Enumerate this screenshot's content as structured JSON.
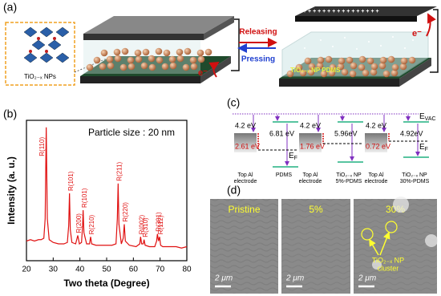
{
  "panel_labels": {
    "a": "(a)",
    "b": "(b)",
    "c": "(c)",
    "d": "(d)"
  },
  "panel_a": {
    "inset_label": "TiO₂₋ₓ NPs",
    "releasing": "Releasing",
    "pressing": "Pressing",
    "layer_label": "TiO₂₋ₓ NP  PDMS",
    "electron_left": "e⁻",
    "electron_right": "e⁻",
    "charges": "+ + + + + + + + + + + + + + + +"
  },
  "chart_data": {
    "type": "line",
    "annotation": "Particle size : 20 nm",
    "x_label": "Two theta (Degree)",
    "y_label": "Intensity (a. u.)",
    "xlim": [
      20,
      80
    ],
    "xticks": [
      20,
      30,
      40,
      50,
      60,
      70,
      80
    ],
    "ylim": [
      0,
      100
    ],
    "color": "#e01010",
    "x": [
      20,
      21.5,
      23,
      24.5,
      25.5,
      26.5,
      27,
      27.4,
      27.8,
      28.5,
      30,
      32,
      34,
      35.3,
      35.8,
      36.1,
      36.4,
      37,
      38.4,
      39.2,
      39.8,
      40.6,
      41,
      41.2,
      41.5,
      42.5,
      43.6,
      44,
      44.4,
      46,
      48,
      50,
      52,
      53.5,
      54,
      54.3,
      54.6,
      55.5,
      56.2,
      56.6,
      57,
      58.5,
      61,
      62.4,
      62.7,
      63.1,
      63.7,
      64,
      64.4,
      66,
      68,
      68.7,
      69,
      69.4,
      69.8,
      70.2,
      71,
      73,
      76,
      78,
      80
    ],
    "values": [
      14,
      15,
      14,
      15,
      15,
      16,
      30,
      95,
      30,
      15,
      13,
      12,
      12,
      13,
      25,
      48,
      22,
      13,
      12,
      18,
      12,
      13,
      25,
      36,
      20,
      12,
      12,
      17,
      12,
      11,
      11,
      11,
      11,
      12,
      30,
      55,
      26,
      12,
      16,
      26,
      14,
      11,
      10,
      12,
      17,
      12,
      12,
      15,
      11,
      10,
      10,
      14,
      19,
      14,
      17,
      11,
      10,
      10,
      10,
      9,
      10
    ],
    "point_labels": [
      null,
      null,
      null,
      null,
      null,
      null,
      null,
      "R(110)",
      null,
      null,
      null,
      null,
      null,
      null,
      null,
      "R(101)",
      null,
      null,
      null,
      "R(200)",
      null,
      null,
      null,
      "R(101)",
      null,
      null,
      null,
      "R(210)",
      null,
      null,
      null,
      null,
      null,
      null,
      null,
      "R(211)",
      null,
      null,
      null,
      "R(220)",
      null,
      null,
      null,
      null,
      "R(002)",
      null,
      null,
      "R(310)",
      null,
      null,
      null,
      null,
      "R(301)",
      null,
      "R(112)",
      null,
      null,
      null,
      null,
      null,
      null
    ]
  },
  "panel_c": {
    "evac": {
      "main": "E",
      "sub": "VAC"
    },
    "diagrams": [
      {
        "work_function": "4.2 eV",
        "barrier": "2.61 eV",
        "gap": "6.81 eV",
        "ef": {
          "main": "E",
          "sub": "F"
        },
        "electrode": [
          "Top Al",
          "electrode"
        ],
        "layer": [
          "PDMS"
        ]
      },
      {
        "work_function": "4.2 eV",
        "barrier": "1.76 eV",
        "gap": "5.96eV",
        "electrode": [
          "Top Al",
          "electrode"
        ],
        "layer": [
          "TiO₂₋ₓ NP",
          "5%-PDMS"
        ]
      },
      {
        "work_function": "4.2 eV",
        "barrier": "0.72 eV",
        "gap": "4.92eV",
        "ef": {
          "main": "E",
          "sub": "F"
        },
        "electrode": [
          "Top Al",
          "electrode"
        ],
        "layer": [
          "TiO₂₋ₓ NP",
          "30%-PDMS"
        ]
      }
    ]
  },
  "panel_d": {
    "images": [
      {
        "label": "Pristine",
        "scale": "2 μm"
      },
      {
        "label": "5%",
        "scale": "2 μm"
      },
      {
        "label": "30%",
        "scale": "2 μm"
      }
    ],
    "cluster_label": [
      "TiO₂₋ₓ NP",
      "cluster"
    ]
  }
}
